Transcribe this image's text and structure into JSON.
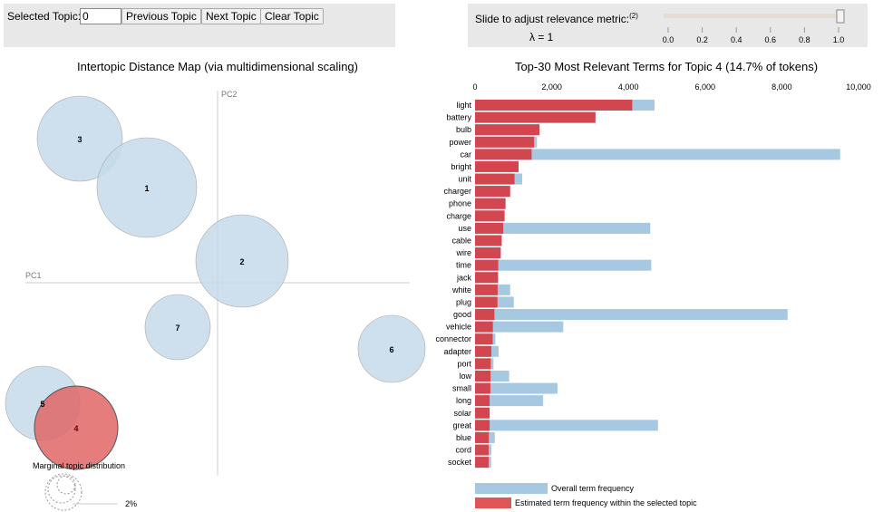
{
  "controls": {
    "selected_topic_label": "Selected Topic:",
    "selected_topic_value": "0",
    "previous_label": "Previous Topic",
    "next_label": "Next Topic",
    "clear_label": "Clear Topic"
  },
  "relevance": {
    "label": "Slide to adjust relevance metric:",
    "footnote": "(2)",
    "lambda_text": "λ = 1",
    "lambda": 1.0,
    "ticks": [
      "0.0",
      "0.2",
      "0.4",
      "0.6",
      "0.8",
      "1.0"
    ]
  },
  "left": {
    "title": "Intertopic Distance Map (via multidimensional scaling)",
    "pc1": "PC1",
    "pc2": "PC2",
    "marginal_label": "Marginal topic distribution",
    "marginal_pct": "2%",
    "topics": [
      "3",
      "1",
      "2",
      "7",
      "6",
      "5",
      "4"
    ],
    "selected_topic": "4",
    "colors": {
      "topic": "#c6dbea",
      "selected": "#e06666"
    }
  },
  "chart_data": {
    "type": "bar",
    "title": "Top-30 Most Relevant Terms for Topic 4 (14.7% of tokens)",
    "xlim": [
      0,
      10000
    ],
    "xticks": [
      "0",
      "2,000",
      "4,000",
      "6,000",
      "8,000",
      "10,000"
    ],
    "xtick_values": [
      0,
      2000,
      4000,
      6000,
      8000,
      10000
    ],
    "categories": [
      "light",
      "battery",
      "bulb",
      "power",
      "car",
      "bright",
      "unit",
      "charger",
      "phone",
      "charge",
      "use",
      "cable",
      "wire",
      "time",
      "jack",
      "white",
      "plug",
      "good",
      "vehicle",
      "connector",
      "adapter",
      "port",
      "low",
      "small",
      "long",
      "solar",
      "great",
      "blue",
      "cord",
      "socket"
    ],
    "series": [
      {
        "name": "Overall term frequency",
        "color": "#a6c8e0",
        "values": [
          4680,
          3140,
          1680,
          1615,
          9520,
          1135,
          1230,
          915,
          795,
          770,
          4570,
          695,
          670,
          4595,
          600,
          915,
          1010,
          8150,
          2300,
          530,
          615,
          480,
          890,
          2150,
          1775,
          385,
          4770,
          515,
          425,
          420
        ]
      },
      {
        "name": "Estimated term frequency within the selected topic",
        "color": "#d2474f",
        "values": [
          4100,
          3140,
          1680,
          1540,
          1475,
          1135,
          1030,
          915,
          795,
          770,
          735,
          695,
          670,
          605,
          600,
          590,
          585,
          505,
          465,
          460,
          425,
          410,
          405,
          400,
          380,
          380,
          380,
          360,
          355,
          355
        ]
      }
    ],
    "legend_placement": "bottom"
  }
}
